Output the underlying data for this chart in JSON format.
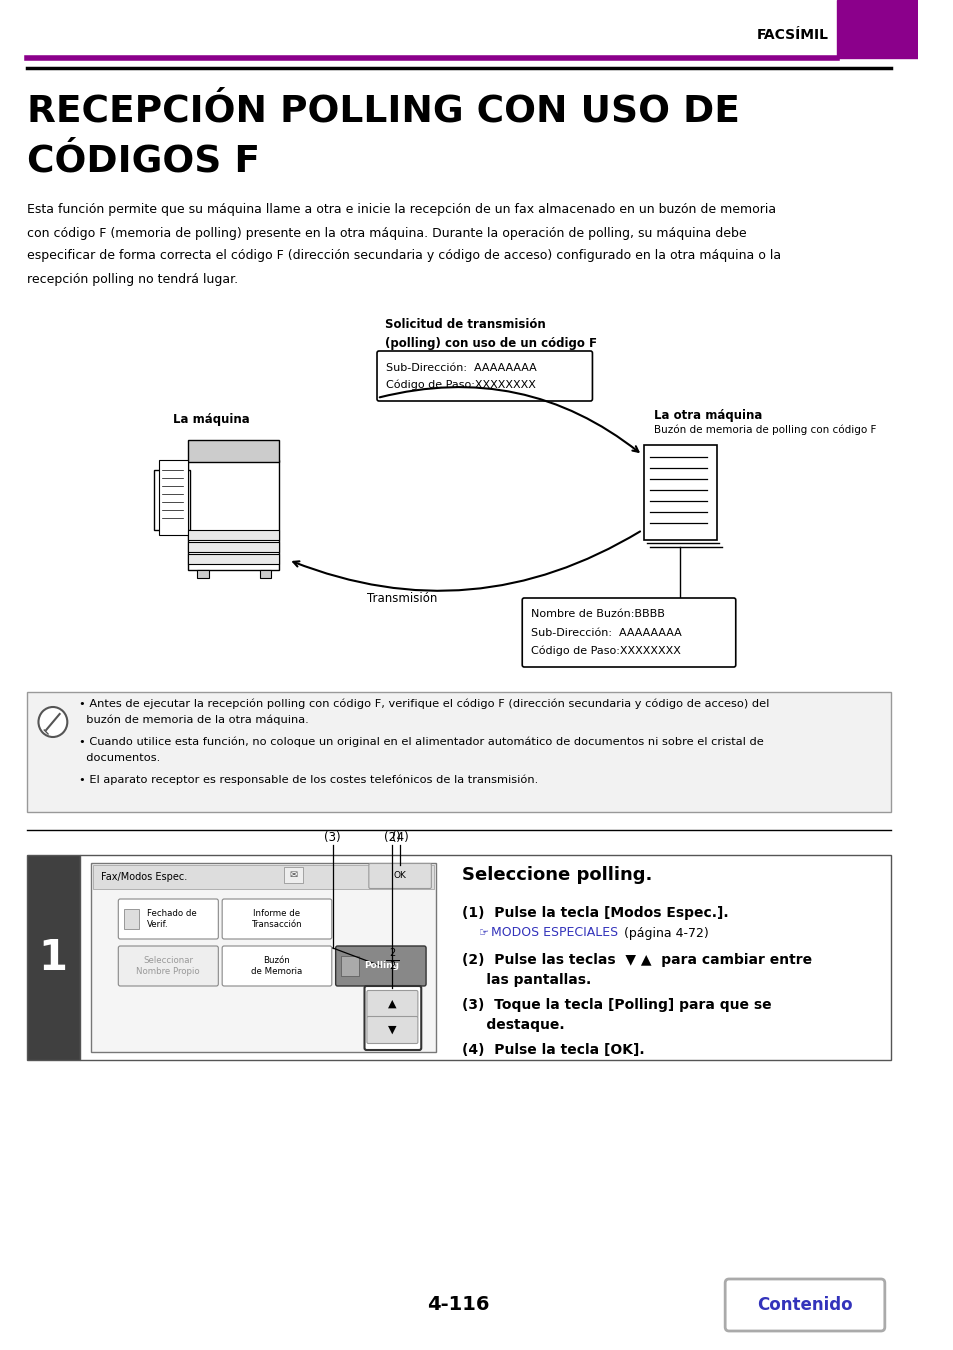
{
  "header_text": "FACSÍMIL",
  "header_bar_color": "#8B008B",
  "title_line1": "RECEPCIÓN POLLING CON USO DE",
  "title_line2": "CÓDIGOS F",
  "body_text_lines": [
    "Esta función permite que su máquina llame a otra e inicie la recepción de un fax almacenado en un buzón de memoria",
    "con código F (memoria de polling) presente en la otra máquina. Durante la operación de polling, su máquina debe",
    "especificar de forma correcta el código F (dirección secundaria y código de acceso) configurado en la otra máquina o la",
    "recepción polling no tendrá lugar."
  ],
  "diag_label1": "Solicitud de transmisión",
  "diag_label2": "(polling) con uso de un código F",
  "box1_line1": "Sub-Dirección:  AAAAAAAA",
  "box1_line2": "Código de Paso:XXXXXXXX",
  "label_la_maquina": "La máquina",
  "label_la_otra_maquina": "La otra máquina",
  "label_buzon": "Buzón de memoria de polling con código F",
  "label_transmision": "Transmisión",
  "box2_line1": "Nombre de Buzón:BBBB",
  "box2_line2": "Sub-Dirección:  AAAAAAAA",
  "box2_line3": "Código de Paso:XXXXXXXX",
  "note1a": "• Antes de ejecutar la recepción polling con código F, verifique el código F (dirección secundaria y código de acceso) del",
  "note1b": "  buzón de memoria de la otra máquina.",
  "note2a": "• Cuando utilice esta función, no coloque un original en el alimentador automático de documentos ni sobre el cristal de",
  "note2b": "  documentos.",
  "note3": "• El aparato receptor es responsable de los costes telefónicos de la transmisión.",
  "step_number": "1",
  "step_label": "(3)   (2)   (4)",
  "step_instruction_title": "Seleccione polling.",
  "step1_bold": "(1)  Pulse la tecla [Modos Espec.].",
  "step1_blue": "MODOS ESPECIALES",
  "step1_gray": " (página 4-72)",
  "step2": "(2)  Pulse las teclas",
  "step2b": " para cambiar entre",
  "step2c": "     las pantallas.",
  "step3a": "(3)  Toque la tecla [Polling] para que se",
  "step3b": "     destaque.",
  "step4": "(4)  Pulse la tecla [OK].",
  "page_number": "4-116",
  "contenido_text": "Contenido",
  "purple_color": "#8B008B",
  "blue_color": "#3333BB",
  "gray_color": "#AAAAAA",
  "light_gray": "#DDDDDD",
  "note_bg": "#F2F2F2"
}
